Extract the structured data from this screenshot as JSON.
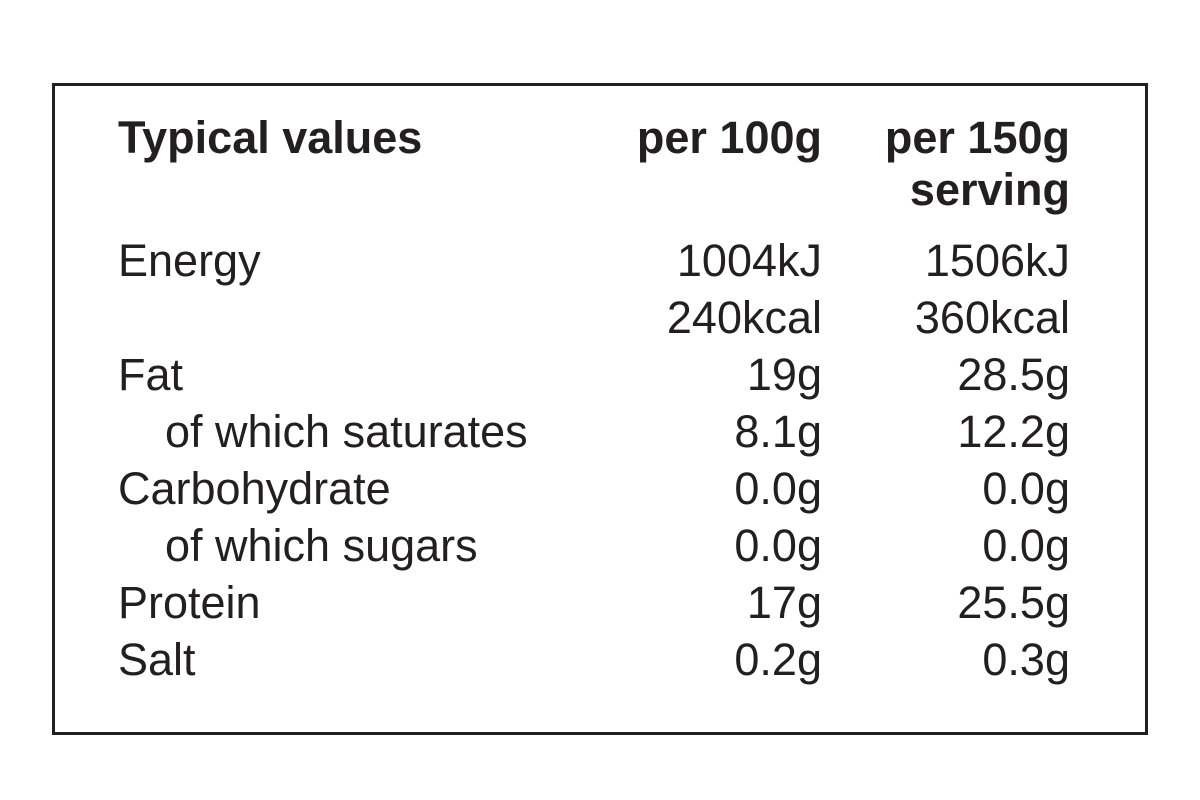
{
  "nutrition_table": {
    "header": {
      "label": "Typical values",
      "per_100g": "per 100g",
      "per_serving_line1": "per 150g",
      "per_serving_line2": "serving"
    },
    "rows": [
      {
        "label": "Energy",
        "per_100g": "1004kJ",
        "per_150g": "1506kJ"
      },
      {
        "label": "",
        "per_100g": "240kcal",
        "per_150g": "360kcal"
      },
      {
        "label": "Fat",
        "per_100g": "19g",
        "per_150g": "28.5g"
      },
      {
        "label": "of which saturates",
        "per_100g": "8.1g",
        "per_150g": "12.2g"
      },
      {
        "label": "Carbohydrate",
        "per_100g": "0.0g",
        "per_150g": "0.0g"
      },
      {
        "label": "of which sugars",
        "per_100g": "0.0g",
        "per_150g": "0.0g"
      },
      {
        "label": "Protein",
        "per_100g": "17g",
        "per_150g": "25.5g"
      },
      {
        "label": "Salt",
        "per_100g": "0.2g",
        "per_150g": "0.3g"
      }
    ]
  },
  "colors": {
    "text": "#231f20",
    "border": "#231f20",
    "background": "#ffffff"
  }
}
